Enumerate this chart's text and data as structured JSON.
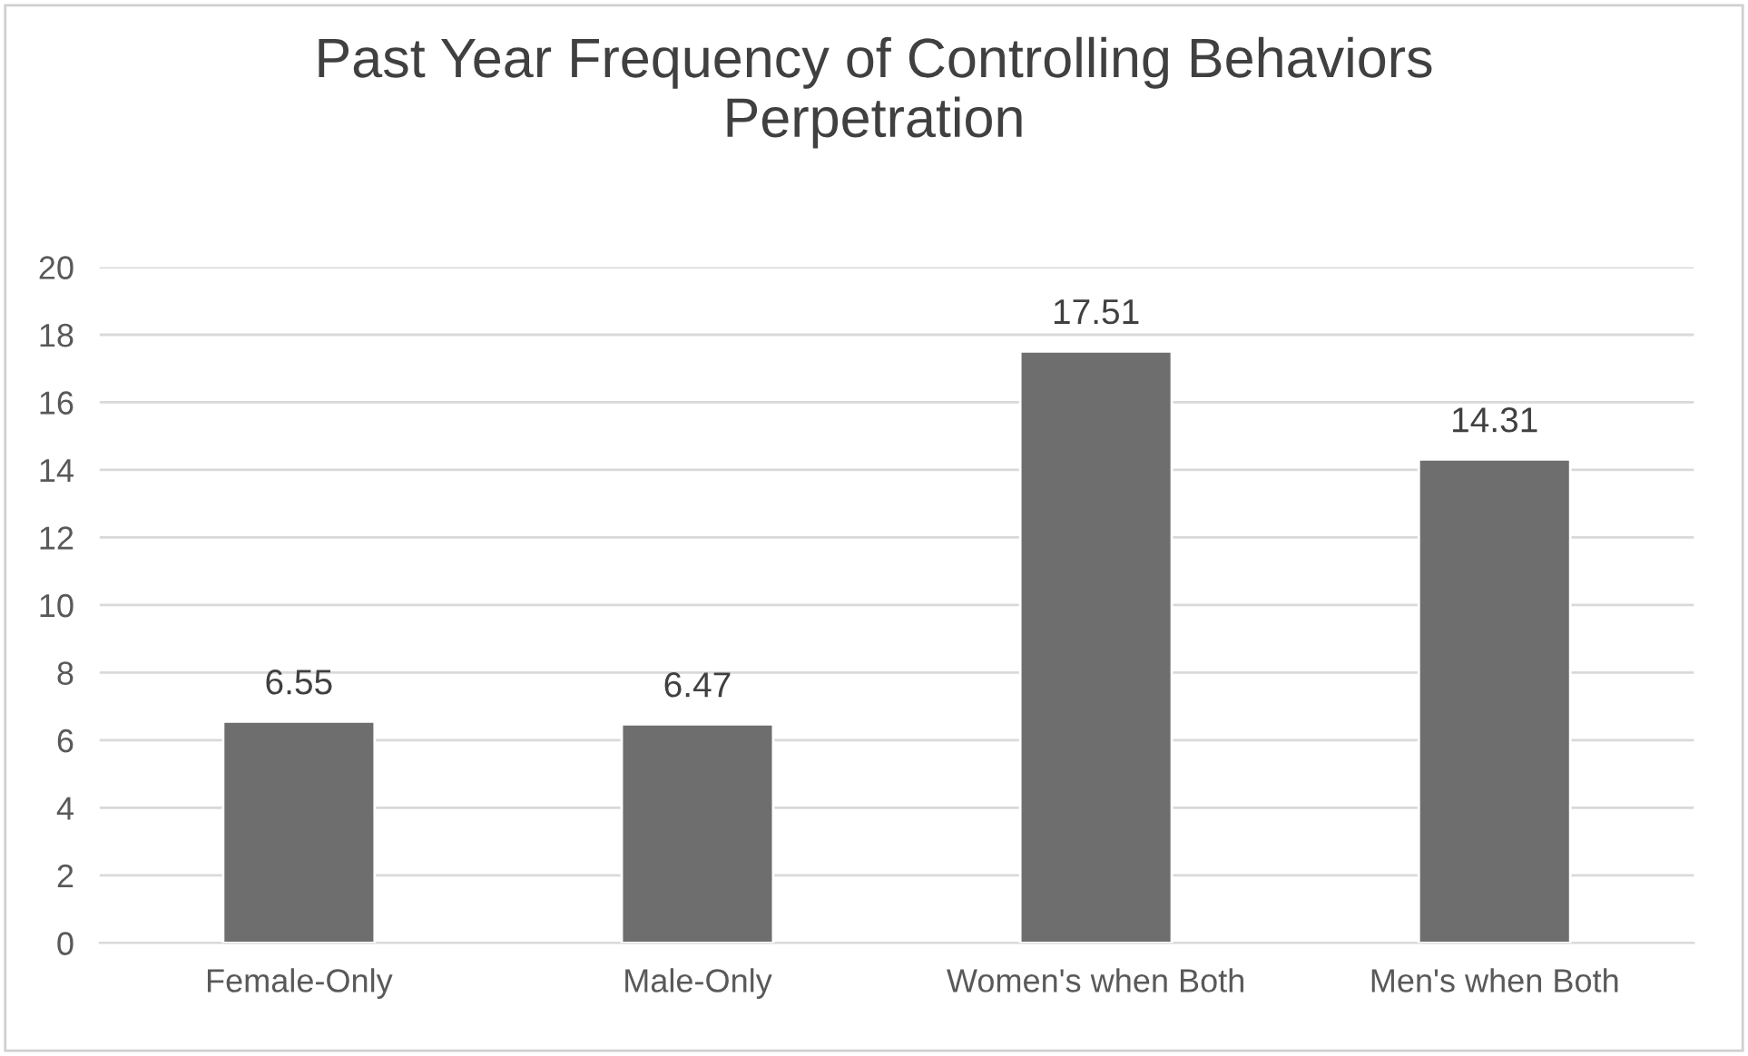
{
  "chart_data": {
    "type": "bar",
    "title": "Past Year Frequency of Controlling Behaviors\nPerpetration",
    "categories": [
      "Female-Only",
      "Male-Only",
      "Women's when Both",
      "Men's when Both"
    ],
    "values": [
      6.55,
      6.47,
      17.51,
      14.31
    ],
    "color": "#6e6e6e",
    "ylim": [
      0,
      20
    ],
    "yticks": [
      0,
      2,
      4,
      6,
      8,
      10,
      12,
      14,
      16,
      18,
      20
    ],
    "grid": "y",
    "data_labels": true
  }
}
